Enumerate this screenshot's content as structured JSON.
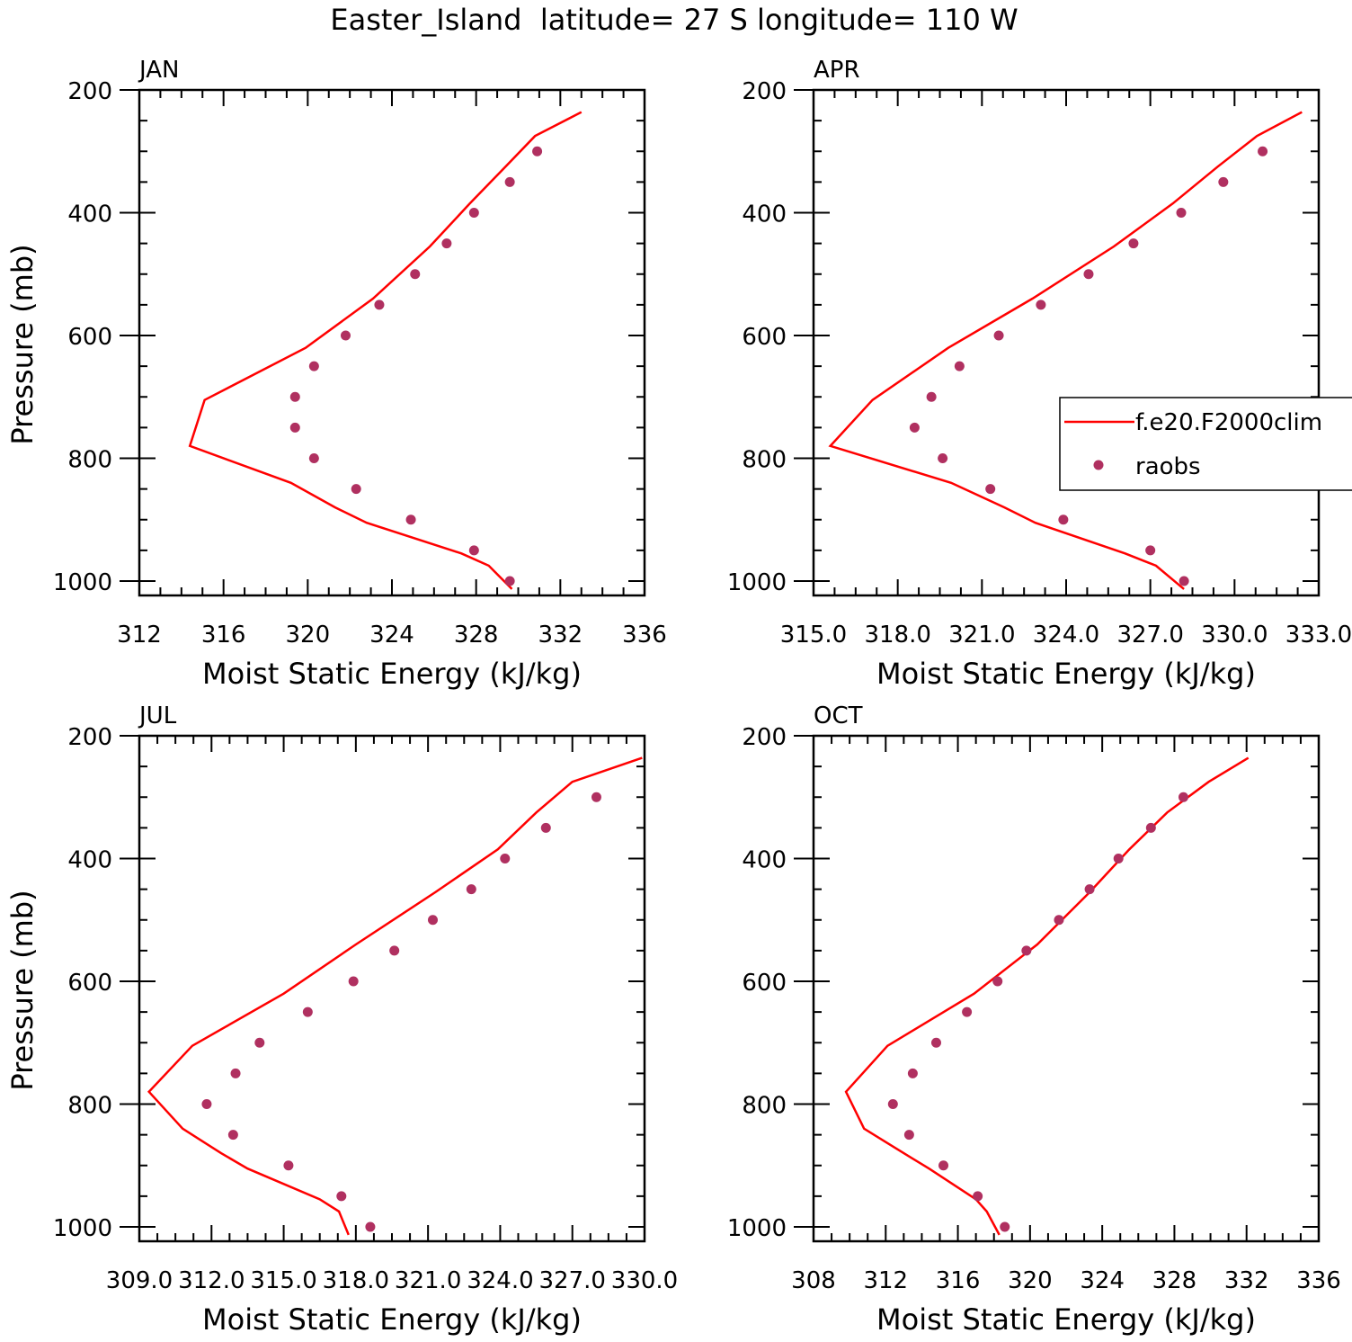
{
  "figure": {
    "title": "Easter_Island  latitude= 27 S longitude= 110 W"
  },
  "colors": {
    "model": "#ff0000",
    "obs": "#b03060",
    "axis": "#000000"
  },
  "legend": {
    "panel": "APR",
    "entries": [
      {
        "label": "f.e20.F2000clim",
        "kind": "line"
      },
      {
        "label": "raobs",
        "kind": "marker"
      }
    ]
  },
  "chart_data": [
    {
      "type": "line",
      "panel_label": "JAN",
      "xlabel": "Moist Static Energy (kJ/kg)",
      "ylabel": "Pressure (mb)",
      "xlim": [
        312,
        336
      ],
      "ylim": [
        1000,
        200
      ],
      "xticks": [
        "312",
        "316",
        "320",
        "324",
        "328",
        "332",
        "336"
      ],
      "yticks": [
        "200",
        "400",
        "600",
        "800",
        "1000"
      ],
      "model_pressure": [
        236,
        275,
        325,
        385,
        455,
        540,
        620,
        705,
        780,
        840,
        880,
        905,
        955,
        975,
        1013
      ],
      "model_mse": [
        333.0,
        330.8,
        329.4,
        327.7,
        325.8,
        323.1,
        319.9,
        315.1,
        314.4,
        319.2,
        321.3,
        322.8,
        327.3,
        328.6,
        329.7
      ],
      "obs_pressure": [
        300,
        350,
        400,
        450,
        500,
        550,
        600,
        650,
        700,
        750,
        800,
        850,
        900,
        950,
        1000
      ],
      "obs_mse": [
        330.9,
        329.6,
        327.9,
        326.6,
        325.1,
        323.4,
        321.8,
        320.3,
        319.4,
        319.4,
        320.3,
        322.3,
        324.9,
        327.9,
        329.6
      ]
    },
    {
      "type": "line",
      "panel_label": "APR",
      "xlabel": "Moist Static Energy (kJ/kg)",
      "ylabel": "",
      "xlim": [
        315.0,
        333.0
      ],
      "ylim": [
        1000,
        200
      ],
      "xticks": [
        "315.0",
        "318.0",
        "321.0",
        "324.0",
        "327.0",
        "330.0",
        "333.0"
      ],
      "yticks": [
        "200",
        "400",
        "600",
        "800",
        "1000"
      ],
      "model_pressure": [
        236,
        275,
        325,
        385,
        455,
        540,
        620,
        705,
        780,
        840,
        880,
        905,
        955,
        975,
        1013
      ],
      "model_mse": [
        332.4,
        330.8,
        329.4,
        327.8,
        325.7,
        322.8,
        319.8,
        317.1,
        315.6,
        319.9,
        321.8,
        322.9,
        326.1,
        327.2,
        328.2
      ],
      "obs_pressure": [
        300,
        350,
        400,
        450,
        500,
        550,
        600,
        650,
        700,
        750,
        800,
        850,
        900,
        950,
        1000
      ],
      "obs_mse": [
        331.0,
        329.6,
        328.1,
        326.4,
        324.8,
        323.1,
        321.6,
        320.2,
        319.2,
        318.6,
        319.6,
        321.3,
        323.9,
        327.0,
        328.2
      ]
    },
    {
      "type": "line",
      "panel_label": "JUL",
      "xlabel": "Moist Static Energy (kJ/kg)",
      "ylabel": "Pressure (mb)",
      "xlim": [
        309.0,
        330.0
      ],
      "ylim": [
        1000,
        200
      ],
      "xticks": [
        "309.0",
        "312.0",
        "315.0",
        "318.0",
        "321.0",
        "324.0",
        "327.0",
        "330.0"
      ],
      "yticks": [
        "200",
        "400",
        "600",
        "800",
        "1000"
      ],
      "model_pressure": [
        236,
        275,
        325,
        385,
        455,
        540,
        620,
        705,
        780,
        840,
        880,
        905,
        955,
        975,
        1013
      ],
      "model_mse": [
        329.9,
        327.0,
        325.5,
        323.9,
        321.3,
        318.0,
        315.0,
        311.2,
        309.4,
        310.8,
        312.4,
        313.5,
        316.5,
        317.3,
        317.7
      ],
      "obs_pressure": [
        300,
        350,
        400,
        450,
        500,
        550,
        600,
        650,
        700,
        750,
        800,
        850,
        900,
        950,
        1000
      ],
      "obs_mse": [
        328.0,
        325.9,
        324.2,
        322.8,
        321.2,
        319.6,
        317.9,
        316.0,
        314.0,
        313.0,
        311.8,
        312.9,
        315.2,
        317.4,
        318.6
      ]
    },
    {
      "type": "line",
      "panel_label": "OCT",
      "xlabel": "Moist Static Energy (kJ/kg)",
      "ylabel": "",
      "xlim": [
        308,
        336
      ],
      "ylim": [
        1000,
        200
      ],
      "xticks": [
        "308",
        "312",
        "316",
        "320",
        "324",
        "328",
        "332",
        "336"
      ],
      "yticks": [
        "200",
        "400",
        "600",
        "800",
        "1000"
      ],
      "model_pressure": [
        236,
        275,
        325,
        385,
        455,
        540,
        620,
        705,
        780,
        840,
        880,
        905,
        955,
        975,
        1013
      ],
      "model_mse": [
        332.1,
        329.9,
        327.6,
        325.5,
        323.3,
        320.4,
        316.9,
        312.1,
        309.8,
        310.8,
        313.0,
        314.4,
        317.0,
        317.6,
        318.3
      ],
      "obs_pressure": [
        300,
        350,
        400,
        450,
        500,
        550,
        600,
        650,
        700,
        750,
        800,
        850,
        900,
        950,
        1000
      ],
      "obs_mse": [
        328.5,
        326.7,
        324.9,
        323.3,
        321.6,
        319.8,
        318.2,
        316.5,
        314.8,
        313.5,
        312.4,
        313.3,
        315.2,
        317.1,
        318.6
      ]
    }
  ]
}
